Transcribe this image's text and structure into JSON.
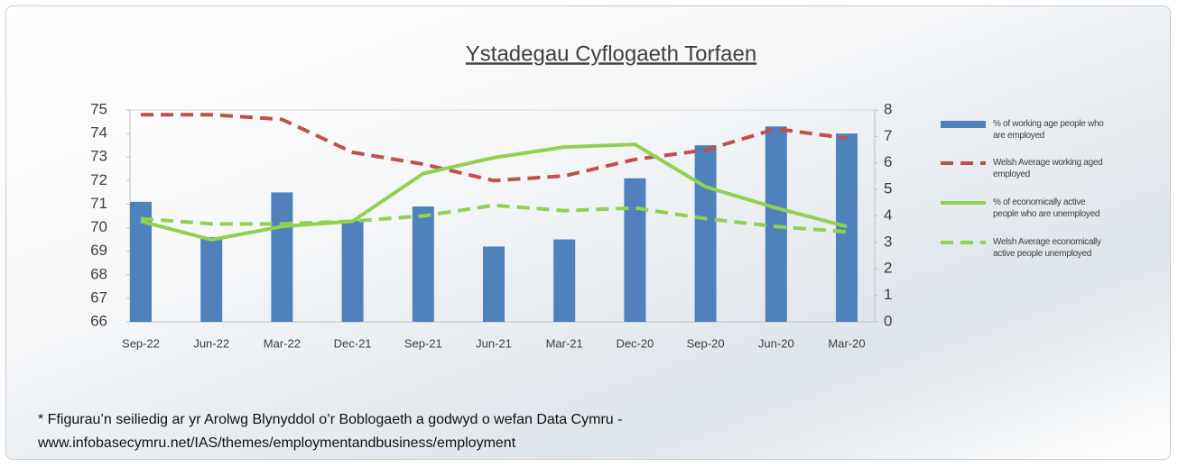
{
  "chart_data": {
    "type": "bar",
    "title": "Ystadegau Cyflogaeth Torfaen",
    "categories": [
      "Sep-22",
      "Jun-22",
      "Mar-22",
      "Dec-21",
      "Sep-21",
      "Jun-21",
      "Mar-21",
      "Dec-20",
      "Sep-20",
      "Jun-20",
      "Mar-20"
    ],
    "series": [
      {
        "name": "% of working age people who are employed",
        "type": "bar",
        "color": "#4f81bd",
        "axis": "y",
        "values": [
          71.1,
          69.6,
          71.5,
          70.3,
          70.9,
          69.2,
          69.5,
          72.1,
          73.5,
          74.3,
          74.0
        ]
      },
      {
        "name": "Welsh Average working aged employed",
        "type": "line",
        "dashed": true,
        "color": "#c0504d",
        "axis": "y",
        "values": [
          74.8,
          74.8,
          74.6,
          73.2,
          72.7,
          72.0,
          72.2,
          72.9,
          73.3,
          74.2,
          73.8
        ]
      },
      {
        "name": "% of economically active people who are unemployed",
        "type": "line",
        "dashed": false,
        "color": "#92d050",
        "axis": "y2",
        "values": [
          3.8,
          3.1,
          3.6,
          3.8,
          5.6,
          6.2,
          6.6,
          6.7,
          5.1,
          4.3,
          3.6
        ]
      },
      {
        "name": "Welsh Average economically active people unemployed",
        "type": "line",
        "dashed": true,
        "color": "#92d050",
        "axis": "y2",
        "values": [
          3.9,
          3.7,
          3.7,
          3.8,
          4.0,
          4.4,
          4.2,
          4.3,
          3.9,
          3.6,
          3.4
        ]
      }
    ],
    "ylim": [
      66,
      75
    ],
    "yticks": [
      66,
      67,
      68,
      69,
      70,
      71,
      72,
      73,
      74,
      75
    ],
    "y2lim": [
      0,
      8
    ],
    "y2ticks": [
      0,
      1,
      2,
      3,
      4,
      5,
      6,
      7,
      8
    ],
    "grid": false,
    "legend": "right"
  },
  "footnote": [
    "* Ffigurau’n seiliedig ar yr Arolwg Blynyddol o’r Boblogaeth a godwyd o wefan Data Cymru -",
    "www.infobasecymru.net/IAS/themes/employmentandbusiness/employment"
  ]
}
